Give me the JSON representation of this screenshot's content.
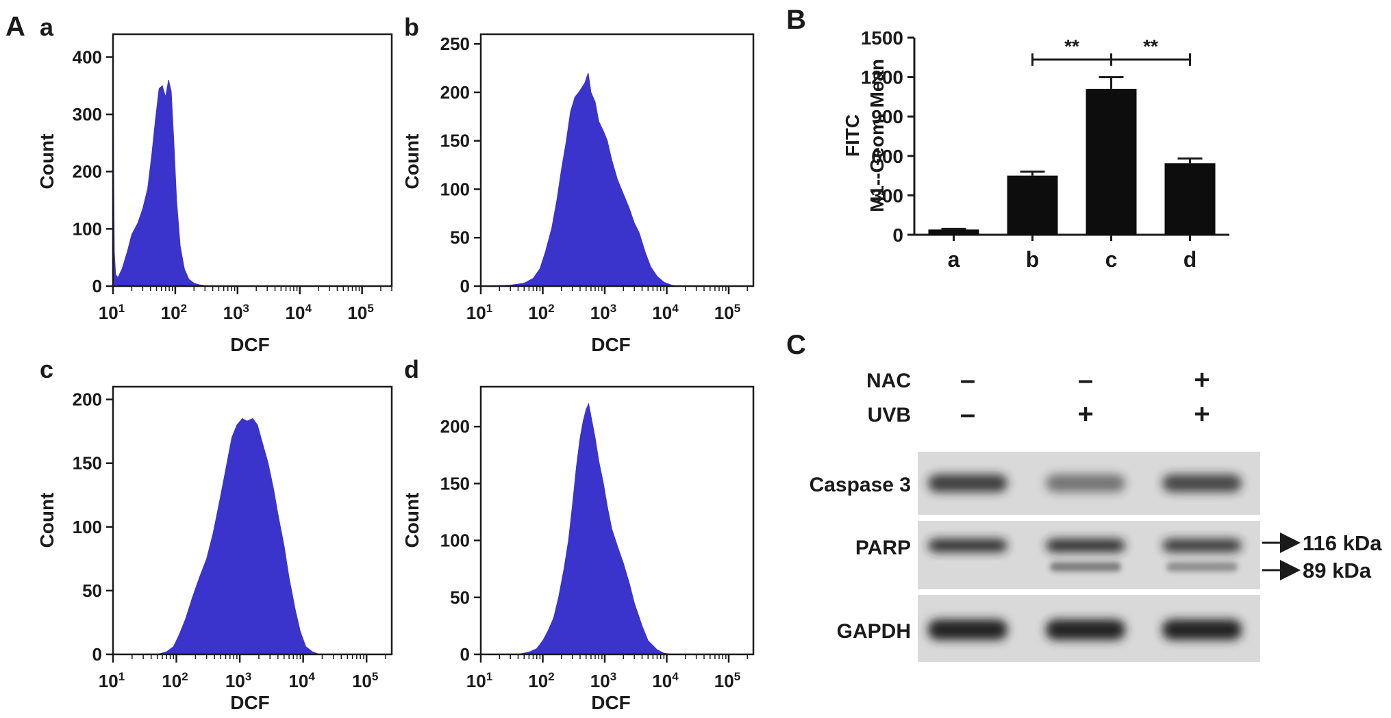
{
  "colors": {
    "histogram_fill": "#3a33cc",
    "bar_fill": "#0d0d0d",
    "axis": "#1a1a1a"
  },
  "panel_labels": {
    "A": "A",
    "B": "B",
    "C": "C"
  },
  "chart_data": [
    {
      "id": "a",
      "type": "area",
      "label": "a",
      "xlabel": "DCF",
      "ylabel": "Count",
      "x_scale": "log",
      "xlim": [
        10,
        300000
      ],
      "ylim": [
        0,
        440
      ],
      "yticks": [
        0,
        100,
        200,
        300,
        400
      ],
      "xticks": [
        {
          "base": "10",
          "exp": "1"
        },
        {
          "base": "10",
          "exp": "2"
        },
        {
          "base": "10",
          "exp": "3"
        },
        {
          "base": "10",
          "exp": "4"
        },
        {
          "base": "10",
          "exp": "5"
        }
      ],
      "x": [
        10,
        10.5,
        11,
        12,
        14,
        17,
        20,
        25,
        30,
        36,
        42,
        48,
        55,
        62,
        70,
        78,
        86,
        95,
        105,
        120,
        140,
        165,
        200,
        250,
        300,
        400,
        300000
      ],
      "y": [
        370,
        60,
        20,
        15,
        30,
        60,
        90,
        110,
        135,
        170,
        230,
        290,
        345,
        350,
        330,
        360,
        340,
        250,
        150,
        70,
        30,
        12,
        5,
        2,
        1,
        0,
        0
      ]
    },
    {
      "id": "b",
      "type": "area",
      "label": "b",
      "xlabel": "DCF",
      "ylabel": "Count",
      "x_scale": "log",
      "xlim": [
        10,
        250000
      ],
      "ylim": [
        0,
        260
      ],
      "yticks": [
        0,
        50,
        100,
        150,
        200,
        250
      ],
      "xticks": [
        {
          "base": "10",
          "exp": "1"
        },
        {
          "base": "10",
          "exp": "2"
        },
        {
          "base": "10",
          "exp": "3"
        },
        {
          "base": "10",
          "exp": "4"
        },
        {
          "base": "10",
          "exp": "5"
        }
      ],
      "x": [
        10,
        30,
        50,
        70,
        90,
        110,
        140,
        170,
        200,
        240,
        280,
        330,
        380,
        430,
        480,
        540,
        600,
        700,
        800,
        950,
        1100,
        1300,
        1600,
        2000,
        2500,
        3000,
        3600,
        4500,
        5500,
        7000,
        9000,
        12000,
        15000,
        250000
      ],
      "y": [
        0,
        1,
        3,
        8,
        18,
        35,
        60,
        90,
        120,
        150,
        180,
        195,
        200,
        205,
        210,
        220,
        200,
        190,
        170,
        160,
        150,
        130,
        110,
        95,
        80,
        65,
        55,
        35,
        20,
        10,
        4,
        1,
        0,
        0
      ]
    },
    {
      "id": "c",
      "type": "area",
      "label": "c",
      "xlabel": "DCF",
      "ylabel": "Count",
      "x_scale": "log",
      "xlim": [
        10,
        250000
      ],
      "ylim": [
        0,
        210
      ],
      "yticks": [
        0,
        50,
        100,
        150,
        200
      ],
      "xticks": [
        {
          "base": "10",
          "exp": "1"
        },
        {
          "base": "10",
          "exp": "2"
        },
        {
          "base": "10",
          "exp": "3"
        },
        {
          "base": "10",
          "exp": "4"
        },
        {
          "base": "10",
          "exp": "5"
        }
      ],
      "x": [
        10,
        50,
        70,
        90,
        110,
        140,
        180,
        230,
        300,
        380,
        480,
        600,
        750,
        900,
        1100,
        1300,
        1600,
        1900,
        2300,
        2800,
        3400,
        4000,
        5000,
        6000,
        7500,
        9000,
        11000,
        14000,
        18000,
        250000
      ],
      "y": [
        0,
        0,
        2,
        6,
        15,
        28,
        45,
        60,
        75,
        95,
        120,
        145,
        170,
        180,
        185,
        183,
        185,
        180,
        165,
        150,
        130,
        110,
        85,
        60,
        35,
        18,
        6,
        2,
        0,
        0
      ]
    },
    {
      "id": "d",
      "type": "area",
      "label": "d",
      "xlabel": "DCF",
      "ylabel": "Count",
      "x_scale": "log",
      "xlim": [
        10,
        250000
      ],
      "ylim": [
        0,
        235
      ],
      "yticks": [
        0,
        50,
        100,
        150,
        200
      ],
      "xticks": [
        {
          "base": "10",
          "exp": "1"
        },
        {
          "base": "10",
          "exp": "2"
        },
        {
          "base": "10",
          "exp": "3"
        },
        {
          "base": "10",
          "exp": "4"
        },
        {
          "base": "10",
          "exp": "5"
        }
      ],
      "x": [
        10,
        40,
        60,
        80,
        100,
        120,
        150,
        180,
        220,
        260,
        300,
        350,
        400,
        450,
        500,
        550,
        620,
        700,
        800,
        950,
        1100,
        1300,
        1600,
        2000,
        2500,
        3000,
        4000,
        5000,
        7000,
        9000,
        12000,
        250000
      ],
      "y": [
        0,
        0,
        2,
        5,
        12,
        20,
        32,
        50,
        75,
        100,
        130,
        165,
        190,
        205,
        215,
        220,
        205,
        190,
        170,
        150,
        130,
        110,
        95,
        80,
        62,
        45,
        25,
        12,
        4,
        1,
        0,
        0
      ]
    },
    {
      "id": "B",
      "type": "bar",
      "label": "B",
      "ylabel_lines": [
        "FITC",
        "M1--Geom. Mean"
      ],
      "categories": [
        "a",
        "b",
        "c",
        "d"
      ],
      "values": [
        40,
        450,
        1110,
        545
      ],
      "errors": [
        5,
        30,
        90,
        35
      ],
      "ylim": [
        0,
        1500
      ],
      "yticks": [
        0,
        300,
        600,
        900,
        1200,
        1500
      ],
      "significance": [
        {
          "from": "b",
          "to": "c",
          "label": "**"
        },
        {
          "from": "c",
          "to": "d",
          "label": "**"
        }
      ]
    }
  ],
  "western_blot": {
    "conditions": [
      {
        "name": "NAC",
        "values": [
          "–",
          "–",
          "+"
        ]
      },
      {
        "name": "UVB",
        "values": [
          "–",
          "+",
          "+"
        ]
      }
    ],
    "blots": [
      {
        "name": "Caspase 3",
        "band_intensity": [
          0.85,
          0.55,
          0.8
        ]
      },
      {
        "name": "PARP",
        "band_intensity": [
          0.9,
          0.9,
          0.85
        ],
        "second_band_intensity": [
          0.0,
          0.5,
          0.4
        ]
      },
      {
        "name": "GAPDH",
        "band_intensity": [
          1.0,
          1.0,
          1.0
        ]
      }
    ],
    "markers": [
      "116 kDa",
      "89 kDa"
    ]
  }
}
